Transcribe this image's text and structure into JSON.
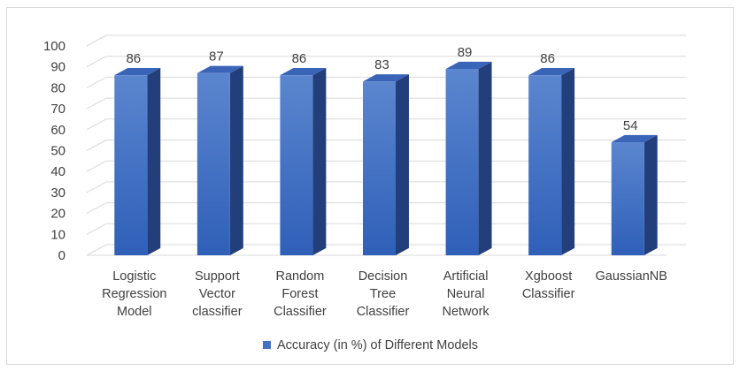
{
  "chart_data": {
    "type": "bar",
    "title": "",
    "xlabel": "",
    "ylabel": "",
    "ylim": [
      0,
      100
    ],
    "yticks": [
      0,
      10,
      20,
      30,
      40,
      50,
      60,
      70,
      80,
      90,
      100
    ],
    "grid": true,
    "legend_position": "bottom",
    "categories": [
      [
        "Logistic",
        "Regression",
        "Model"
      ],
      [
        "Support",
        "Vector",
        "classifier"
      ],
      [
        "Random",
        "Forest",
        "Classifier"
      ],
      [
        "Decision",
        "Tree",
        "Classifier"
      ],
      [
        "Artificial",
        "Neural",
        "Network"
      ],
      [
        "Xgboost",
        "Classifier"
      ],
      [
        "GaussianNB"
      ]
    ],
    "series": [
      {
        "name": "Accuracy (in %) of Different Models",
        "values": [
          86,
          87,
          86,
          83,
          89,
          86,
          54
        ],
        "color": "#4472c4"
      }
    ]
  }
}
